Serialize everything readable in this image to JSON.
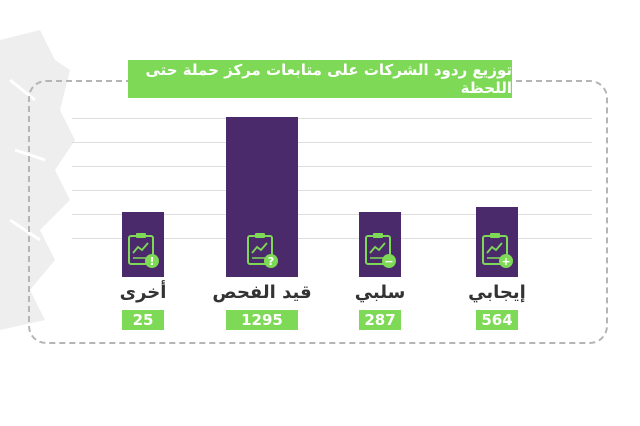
{
  "chart_data": {
    "type": "bar",
    "title": "توزيع ردود الشركات على متابعات مركز حملة حتى اللحظة",
    "categories": [
      "أخرى",
      "قيد الفحص",
      "سلبي",
      "إيجابي"
    ],
    "values": [
      25,
      1295,
      287,
      564
    ],
    "bar_icons": [
      "clipboard-exclamation-icon",
      "clipboard-question-icon",
      "clipboard-minus-icon",
      "clipboard-plus-icon"
    ],
    "xlabel": "",
    "ylabel": "",
    "grid": true,
    "legend": "none"
  },
  "colors": {
    "bar": "#4b2a6b",
    "accent": "#7ed957",
    "label_text": "#333333",
    "frame": "#b5b5b5",
    "background_shape": "#eeeeee"
  }
}
